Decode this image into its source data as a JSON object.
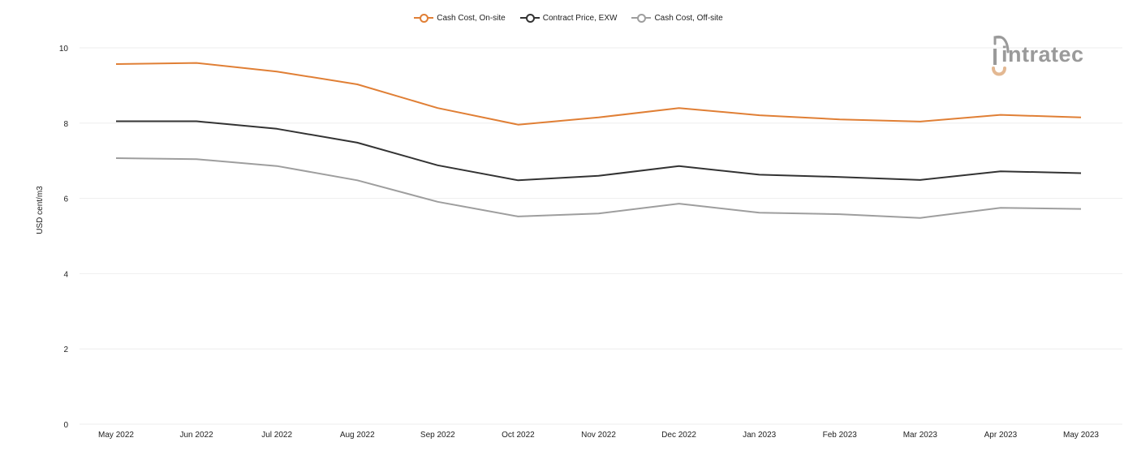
{
  "brand": {
    "logo_text": "intratec"
  },
  "colors": {
    "on_site": "#e07f35",
    "contract": "#333333",
    "off_site": "#9e9e9e",
    "grid": "#eeeeee",
    "logo_gray": "#9a9a9a",
    "logo_accent": "#e3b892"
  },
  "chart_data": {
    "type": "line",
    "title": "",
    "xlabel": "",
    "ylabel": "USD cent/m3",
    "ylim": [
      0,
      10
    ],
    "yticks": [
      0,
      2,
      4,
      6,
      8,
      10
    ],
    "grid": true,
    "legend_position": "top-center",
    "categories": [
      "May 2022",
      "Jun 2022",
      "Jul 2022",
      "Aug 2022",
      "Sep 2022",
      "Oct 2022",
      "Nov 2022",
      "Dec 2022",
      "Jan 2023",
      "Feb 2023",
      "Mar 2023",
      "Apr 2023",
      "May 2023"
    ],
    "series": [
      {
        "name": "Cash Cost, On-site",
        "color": "#e07f35",
        "values": [
          9.57,
          9.6,
          9.37,
          9.03,
          8.4,
          7.96,
          8.15,
          8.4,
          8.21,
          8.1,
          8.04,
          8.22,
          8.15
        ]
      },
      {
        "name": "Contract Price, EXW",
        "color": "#333333",
        "values": [
          8.05,
          8.05,
          7.85,
          7.48,
          6.88,
          6.48,
          6.6,
          6.86,
          6.63,
          6.57,
          6.49,
          6.72,
          6.67
        ]
      },
      {
        "name": "Cash Cost, Off-site",
        "color": "#9e9e9e",
        "values": [
          7.07,
          7.04,
          6.86,
          6.48,
          5.91,
          5.52,
          5.6,
          5.86,
          5.62,
          5.58,
          5.48,
          5.75,
          5.72
        ]
      }
    ]
  }
}
